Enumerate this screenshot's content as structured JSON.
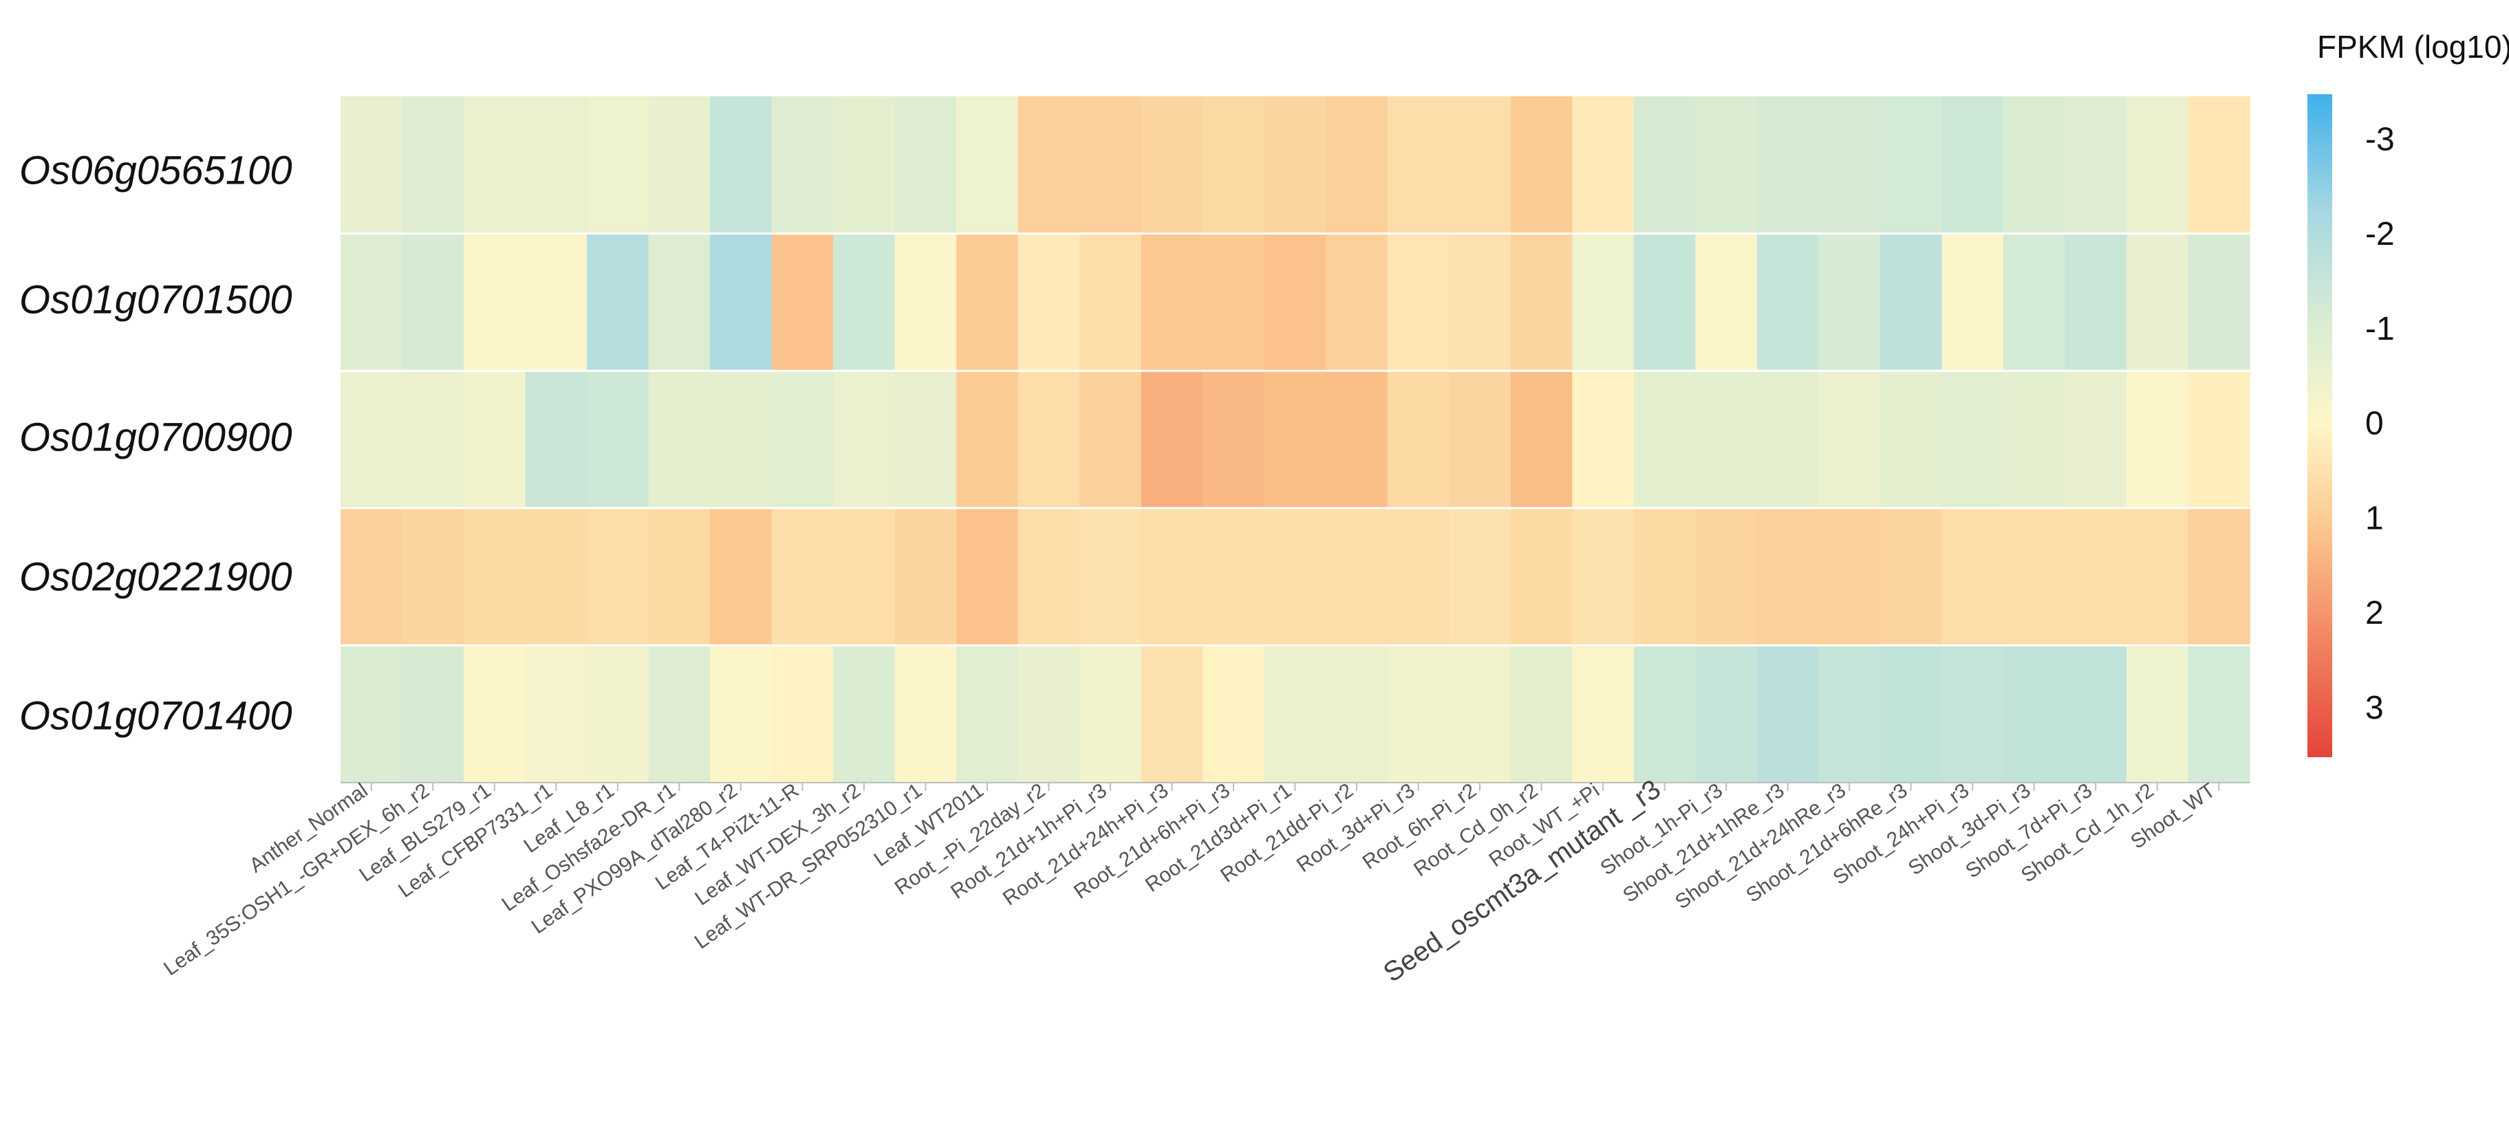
{
  "chart_data": {
    "type": "heatmap",
    "title": "",
    "rows": [
      "Os06g0565100",
      "Os01g0701500",
      "Os01g0700900",
      "Os02g0221900",
      "Os01g0701400"
    ],
    "columns": [
      "Anther_Normal",
      "Leaf_35S:OSH1_-GR+DEX_6h_r2",
      "Leaf_BLS279_r1",
      "Leaf_CFBP7331_r1",
      "Leaf_L8_r1",
      "Leaf_Oshsfa2e-DR_r1",
      "Leaf_PXO99A_dTal280_r2",
      "Leaf_T4-PiZt-11-R",
      "Leaf_WT-DEX_3h_r2",
      "Leaf_WT-DR_SRP052310_r1",
      "Leaf_WT2011",
      "Root_-Pi_22day_r2",
      "Root_21d+1h+Pi_r3",
      "Root_21d+24h+Pi_r3",
      "Root_21d+6h+Pi_r3",
      "Root_21d3d+Pi_r1",
      "Root_21dd-Pi_r2",
      "Root_3d+Pi_r3",
      "Root_6h-Pi_r2",
      "Root_Cd_0h_r2",
      "Root_WT_+Pi",
      "Seed_oscmt3a_mutant _r3",
      "Shoot_1h-Pi_r3",
      "Shoot_21d+1hRe_r3",
      "Shoot_21d+24hRe_r3",
      "Shoot_21d+6hRe_r3",
      "Shoot_24h+Pi_r3",
      "Shoot_3d-Pi_r3",
      "Shoot_7d+Pi_r3",
      "Shoot_Cd_1h_r2",
      "Shoot_WT"
    ],
    "values": [
      [
        -0.7,
        -1.0,
        -0.6,
        -0.6,
        -0.5,
        -0.7,
        -1.6,
        -1.0,
        -0.8,
        -1.0,
        -0.5,
        0.9,
        0.9,
        0.8,
        0.7,
        0.8,
        0.9,
        0.6,
        0.6,
        1.0,
        0.3,
        -1.2,
        -1.1,
        -1.2,
        -1.2,
        -1.3,
        -1.4,
        -1.1,
        -1.0,
        -0.6,
        0.4
      ],
      [
        -1.0,
        -1.2,
        -0.1,
        -0.1,
        -2.0,
        -1.0,
        -2.2,
        1.2,
        -1.4,
        -0.1,
        1.0,
        0.3,
        0.6,
        1.1,
        1.1,
        1.2,
        0.9,
        0.4,
        0.5,
        0.8,
        -0.5,
        -1.6,
        -0.1,
        -1.6,
        -1.2,
        -1.8,
        -0.1,
        -1.3,
        -1.5,
        -0.7,
        -1.2
      ],
      [
        -0.6,
        -0.6,
        -0.4,
        -1.5,
        -1.4,
        -0.8,
        -0.8,
        -0.9,
        -0.6,
        -0.7,
        1.0,
        0.6,
        0.9,
        1.6,
        1.4,
        1.3,
        1.3,
        0.7,
        0.8,
        1.3,
        0.1,
        -0.8,
        -0.8,
        -0.8,
        -0.6,
        -0.8,
        -0.9,
        -0.8,
        -0.7,
        -0.1,
        0.2
      ],
      [
        0.9,
        0.8,
        0.7,
        0.7,
        0.6,
        0.7,
        1.1,
        0.6,
        0.6,
        0.8,
        1.2,
        0.6,
        0.5,
        0.6,
        0.6,
        0.6,
        0.6,
        0.6,
        0.5,
        0.7,
        0.5,
        0.7,
        0.8,
        0.9,
        0.9,
        0.8,
        0.6,
        0.6,
        0.6,
        0.6,
        0.9
      ],
      [
        -1.1,
        -1.2,
        -0.1,
        -0.3,
        -0.4,
        -1.0,
        -0.1,
        0.1,
        -1.1,
        -0.1,
        -0.9,
        -0.7,
        -0.4,
        0.5,
        0.1,
        -0.6,
        -0.6,
        -0.4,
        -0.4,
        -0.8,
        -0.1,
        -1.4,
        -1.6,
        -1.9,
        -1.6,
        -1.7,
        -1.6,
        -1.7,
        -1.7,
        -0.5,
        -1.3
      ]
    ],
    "color_scale": {
      "title": "FPKM (log10)",
      "ticks": [
        -3,
        -2,
        -1,
        0,
        1,
        2,
        3
      ],
      "tick_labels": [
        "-3",
        "-2",
        "-1",
        "0",
        "1",
        "2",
        "3"
      ],
      "range": [
        -3.5,
        3.5
      ],
      "colors": [
        "#3fb0ea",
        "#a8d8e2",
        "#d8ecd4",
        "#fff6c8",
        "#fbc58c",
        "#f28664",
        "#e4443a"
      ]
    }
  }
}
